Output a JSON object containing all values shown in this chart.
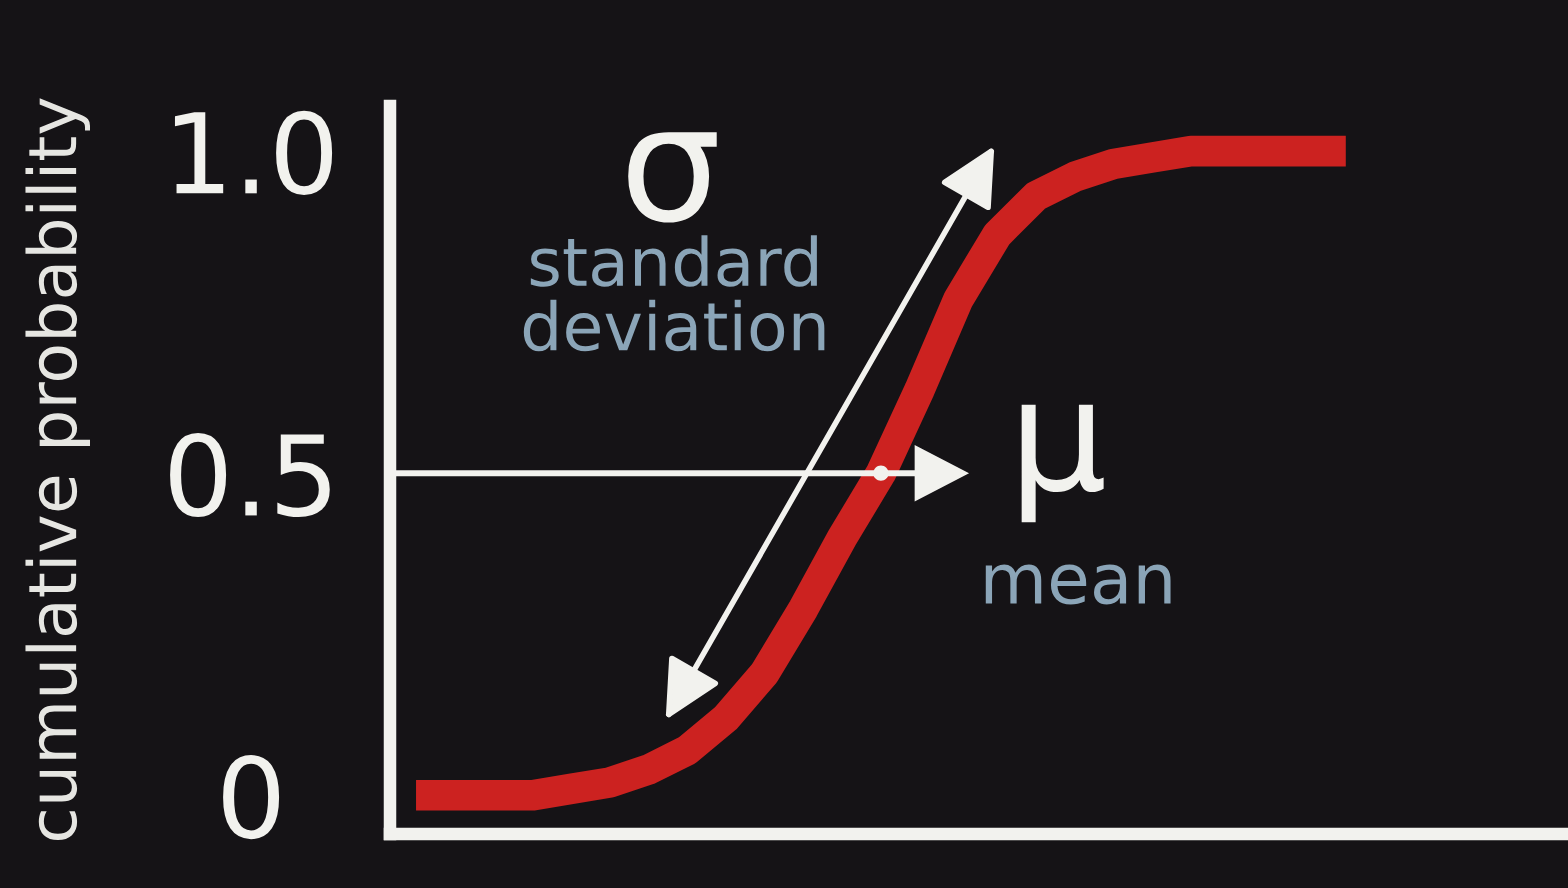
{
  "chart_data": {
    "type": "line",
    "ylabel": "cumulative probability",
    "categories": [
      null,
      null,
      null,
      null,
      null,
      null,
      null,
      null,
      null,
      null,
      null,
      null,
      null,
      null,
      null,
      null,
      null,
      null,
      null,
      null,
      null,
      null,
      null,
      null,
      null
    ],
    "series": [
      {
        "color": "#cc2220",
        "values": [
          0,
          0,
          0,
          0,
          0.01,
          0.02,
          0.04,
          0.07,
          0.12,
          0.19,
          0.29,
          0.4,
          0.5,
          0.63,
          0.77,
          0.87,
          0.93,
          0.96,
          0.98,
          0.99,
          1,
          1,
          1,
          1,
          1
        ]
      },
      {
        "type": "scatter",
        "color": "#f2f2ee",
        "values": [
          null,
          null,
          null,
          null,
          null,
          null,
          null,
          null,
          null,
          null,
          null,
          null,
          0.5,
          null,
          null,
          null,
          null,
          null,
          null,
          null,
          null,
          null,
          null,
          null,
          null
        ]
      }
    ],
    "ylim": [
      -0.06,
      1.07
    ],
    "yticks": [
      0,
      0.5,
      {
        "value": 1,
        "label": "1.0"
      }
    ],
    "tick_labels": "y",
    "line_style": "solid",
    "ref_lines": [
      {
        "axis": "y",
        "value": 0.5,
        "label": "μ",
        "color": "#f2f2ee"
      }
    ],
    "annotations": [
      "σ",
      "standard\ndeviation",
      "mean"
    ]
  }
}
